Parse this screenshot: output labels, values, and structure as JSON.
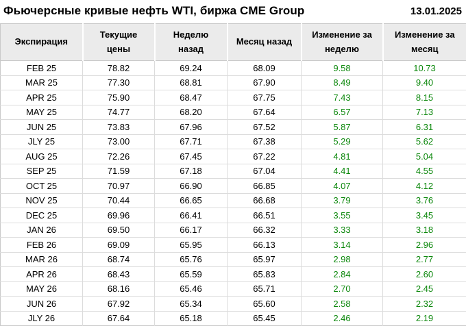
{
  "header": {
    "title": "Фьючерсные кривые нефть WTI, биржа CME Group",
    "date": "13.01.2025"
  },
  "colors": {
    "positive": "#0a870a",
    "header_bg": "#ebebeb",
    "outer_border": "#c9c9c9",
    "grid": "#dcdcdc"
  },
  "chart_data": {
    "type": "table",
    "title": "Фьючерсные кривые нефть WTI, биржа CME Group",
    "date": "13.01.2025",
    "columns": [
      "Экспирация",
      "Текущие цены",
      "Неделю назад",
      "Месяц назад",
      "Изменение за неделю",
      "Изменение за месяц"
    ],
    "change_columns_color": "#0a870a",
    "rows": [
      [
        "FEB 25",
        "78.82",
        "69.24",
        "68.09",
        "9.58",
        "10.73"
      ],
      [
        "MAR 25",
        "77.30",
        "68.81",
        "67.90",
        "8.49",
        "9.40"
      ],
      [
        "APR 25",
        "75.90",
        "68.47",
        "67.75",
        "7.43",
        "8.15"
      ],
      [
        "MAY 25",
        "74.77",
        "68.20",
        "67.64",
        "6.57",
        "7.13"
      ],
      [
        "JUN 25",
        "73.83",
        "67.96",
        "67.52",
        "5.87",
        "6.31"
      ],
      [
        "JLY 25",
        "73.00",
        "67.71",
        "67.38",
        "5.29",
        "5.62"
      ],
      [
        "AUG 25",
        "72.26",
        "67.45",
        "67.22",
        "4.81",
        "5.04"
      ],
      [
        "SEP 25",
        "71.59",
        "67.18",
        "67.04",
        "4.41",
        "4.55"
      ],
      [
        "OCT 25",
        "70.97",
        "66.90",
        "66.85",
        "4.07",
        "4.12"
      ],
      [
        "NOV 25",
        "70.44",
        "66.65",
        "66.68",
        "3.79",
        "3.76"
      ],
      [
        "DEC 25",
        "69.96",
        "66.41",
        "66.51",
        "3.55",
        "3.45"
      ],
      [
        "JAN 26",
        "69.50",
        "66.17",
        "66.32",
        "3.33",
        "3.18"
      ],
      [
        "FEB 26",
        "69.09",
        "65.95",
        "66.13",
        "3.14",
        "2.96"
      ],
      [
        "MAR 26",
        "68.74",
        "65.76",
        "65.97",
        "2.98",
        "2.77"
      ],
      [
        "APR 26",
        "68.43",
        "65.59",
        "65.83",
        "2.84",
        "2.60"
      ],
      [
        "MAY 26",
        "68.16",
        "65.46",
        "65.71",
        "2.70",
        "2.45"
      ],
      [
        "JUN 26",
        "67.92",
        "65.34",
        "65.60",
        "2.58",
        "2.32"
      ],
      [
        "JLY 26",
        "67.64",
        "65.18",
        "65.45",
        "2.46",
        "2.19"
      ]
    ]
  }
}
